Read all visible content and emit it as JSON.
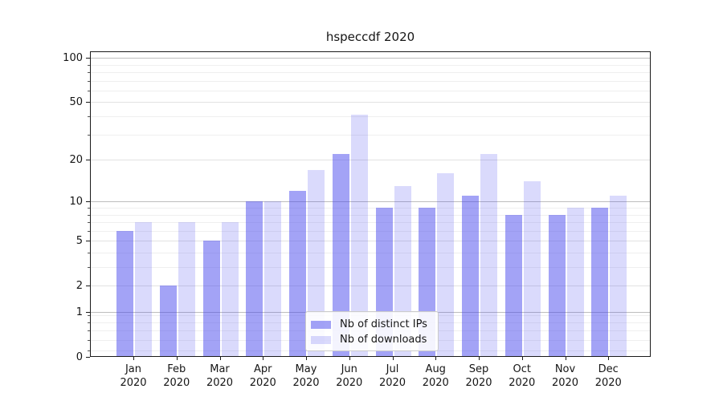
{
  "chart_data": {
    "type": "bar",
    "title": "hspeccdf 2020",
    "categories": [
      "Jan",
      "Feb",
      "Mar",
      "Apr",
      "May",
      "Jun",
      "Jul",
      "Aug",
      "Sep",
      "Oct",
      "Nov",
      "Dec"
    ],
    "x_year": "2020",
    "series": [
      {
        "name": "Nb of distinct IPs",
        "color": "rgba(72,72,238,0.5)",
        "values": [
          6,
          2,
          5,
          10,
          12,
          22,
          9,
          9,
          11,
          8,
          8,
          9
        ]
      },
      {
        "name": "Nb of downloads",
        "color": "rgba(72,72,238,0.2)",
        "values": [
          7,
          7,
          7,
          10,
          17,
          41,
          13,
          16,
          22,
          14,
          9,
          11
        ]
      }
    ],
    "yscale": "log1p",
    "ylim": [
      0,
      110
    ],
    "yticks": [
      0,
      1,
      2,
      5,
      10,
      20,
      50,
      100
    ],
    "ytick_major": [
      1,
      10,
      100
    ],
    "ytick_mid": [
      2,
      5,
      20,
      50
    ],
    "minor_gridlines": [
      0.1,
      0.3,
      0.5,
      0.7,
      0.9,
      3,
      4,
      6,
      7,
      8,
      9,
      30,
      40,
      60,
      70,
      80,
      90
    ],
    "grid": true,
    "legend_position": "lower center"
  },
  "colors": {
    "grid_major": "#bdbdbd",
    "grid_mid": "#e2e2e2",
    "grid_minor": "#efefef",
    "axis": "#1a1a1a",
    "text": "#151515",
    "background": "#ffffff"
  }
}
